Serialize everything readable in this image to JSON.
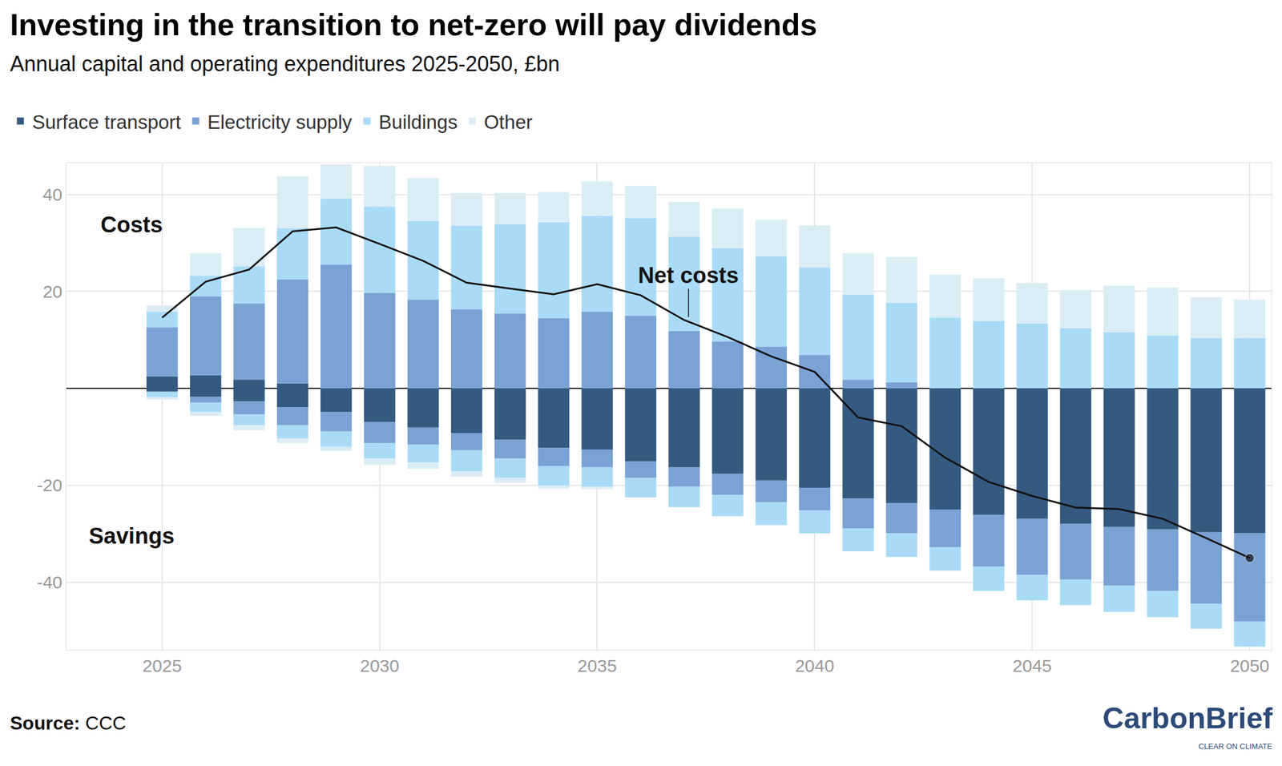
{
  "chart_data": {
    "type": "bar",
    "title": "Investing in the transition to net-zero will pay dividends",
    "subtitle": "Annual capital and operating expenditures 2025-2050, £bn",
    "annotations": {
      "costs": "Costs",
      "savings": "Savings"
    },
    "source_label": "Source:",
    "source": "CCC",
    "logo": "CarbonBrief",
    "logo_tagline": "CLEAR ON CLIMATE",
    "stacked": true,
    "grid": true,
    "legend": "top-left",
    "x": [
      2025,
      2026,
      2027,
      2028,
      2029,
      2030,
      2031,
      2032,
      2033,
      2034,
      2035,
      2036,
      2037,
      2038,
      2039,
      2040,
      2041,
      2042,
      2043,
      2044,
      2045,
      2046,
      2047,
      2048,
      2049,
      2050
    ],
    "xlim": [
      2022.8,
      2050.5
    ],
    "xticks": [
      2025,
      2030,
      2035,
      2040,
      2045,
      2050
    ],
    "ylim": [
      -54,
      46.5
    ],
    "yticks": [
      -40,
      -20,
      20,
      40
    ],
    "series": [
      {
        "name": "Surface transport",
        "color": "#355a80",
        "costs": [
          2.5,
          2.7,
          1.8,
          1.0,
          0,
          0,
          0,
          0,
          0,
          0,
          0,
          0,
          0,
          0,
          0,
          0,
          0,
          0,
          0,
          0,
          0,
          0,
          0,
          0,
          0,
          0
        ],
        "savings": [
          -0.7,
          -1.7,
          -2.7,
          -3.9,
          -4.9,
          -6.9,
          -8.1,
          -9.2,
          -10.6,
          -12.3,
          -12.6,
          -15.1,
          -16.3,
          -17.6,
          -19.0,
          -20.5,
          -22.7,
          -23.7,
          -25.0,
          -26.1,
          -26.9,
          -27.9,
          -28.6,
          -29.1,
          -29.7,
          -29.9
        ]
      },
      {
        "name": "Electricity supply",
        "color": "#7aa2d4",
        "costs": [
          10.1,
          16.3,
          15.7,
          21.5,
          25.5,
          19.7,
          18.3,
          16.3,
          15.5,
          14.5,
          15.8,
          15.0,
          11.8,
          9.7,
          8.6,
          6.9,
          1.8,
          1.3,
          0,
          0,
          0,
          0,
          0,
          0,
          0,
          0
        ],
        "savings": [
          0,
          -1.2,
          -2.7,
          -3.7,
          -4.0,
          -4.4,
          -3.5,
          -3.6,
          -3.9,
          -3.7,
          -3.7,
          -3.4,
          -4.0,
          -4.4,
          -4.5,
          -4.7,
          -6.2,
          -6.2,
          -7.8,
          -10.7,
          -11.6,
          -11.6,
          -12.1,
          -12.7,
          -14.7,
          -18.2
        ]
      },
      {
        "name": "Buildings",
        "color": "#a9dbf7",
        "costs": [
          3.2,
          4.2,
          7.7,
          10.6,
          13.7,
          17.8,
          16.2,
          17.3,
          18.4,
          19.8,
          19.8,
          20.1,
          19.5,
          19.2,
          18.6,
          18.0,
          17.5,
          16.3,
          14.6,
          13.9,
          13.4,
          12.4,
          11.6,
          10.9,
          10.4,
          10.4
        ],
        "savings": [
          -1.1,
          -2.0,
          -2.2,
          -2.7,
          -3.2,
          -3.2,
          -3.7,
          -4.3,
          -4.0,
          -4.0,
          -4.0,
          -4.0,
          -4.2,
          -4.4,
          -4.7,
          -4.7,
          -4.7,
          -4.9,
          -4.8,
          -5.0,
          -5.2,
          -5.2,
          -5.4,
          -5.4,
          -5.2,
          -5.2
        ]
      },
      {
        "name": "Other",
        "color": "#daedf4",
        "costs": [
          1.3,
          4.7,
          7.9,
          10.6,
          7.0,
          8.4,
          8.9,
          6.7,
          6.4,
          6.2,
          7.1,
          6.7,
          7.2,
          8.2,
          7.6,
          8.7,
          8.6,
          9.5,
          8.9,
          8.8,
          8.3,
          7.9,
          9.6,
          9.9,
          8.4,
          7.9
        ],
        "savings": [
          -0.5,
          -0.8,
          -1.0,
          -1.0,
          -0.8,
          -1.3,
          -1.3,
          -1.1,
          -1.0,
          -0.7,
          -0.5,
          0,
          0,
          0,
          0,
          0,
          0,
          0,
          0,
          0,
          0,
          0,
          0,
          0,
          0,
          0
        ]
      },
      {
        "name": "Net costs",
        "type": "line",
        "color": "#111111",
        "marker": "end",
        "values": [
          14.6,
          22.0,
          24.5,
          32.4,
          33.2,
          29.8,
          26.3,
          21.8,
          20.6,
          19.4,
          21.5,
          19.2,
          14.1,
          10.6,
          6.6,
          3.4,
          -6.0,
          -7.8,
          -14.3,
          -19.3,
          -22.2,
          -24.6,
          -24.9,
          -26.9,
          -30.9,
          -35.0
        ]
      }
    ]
  }
}
